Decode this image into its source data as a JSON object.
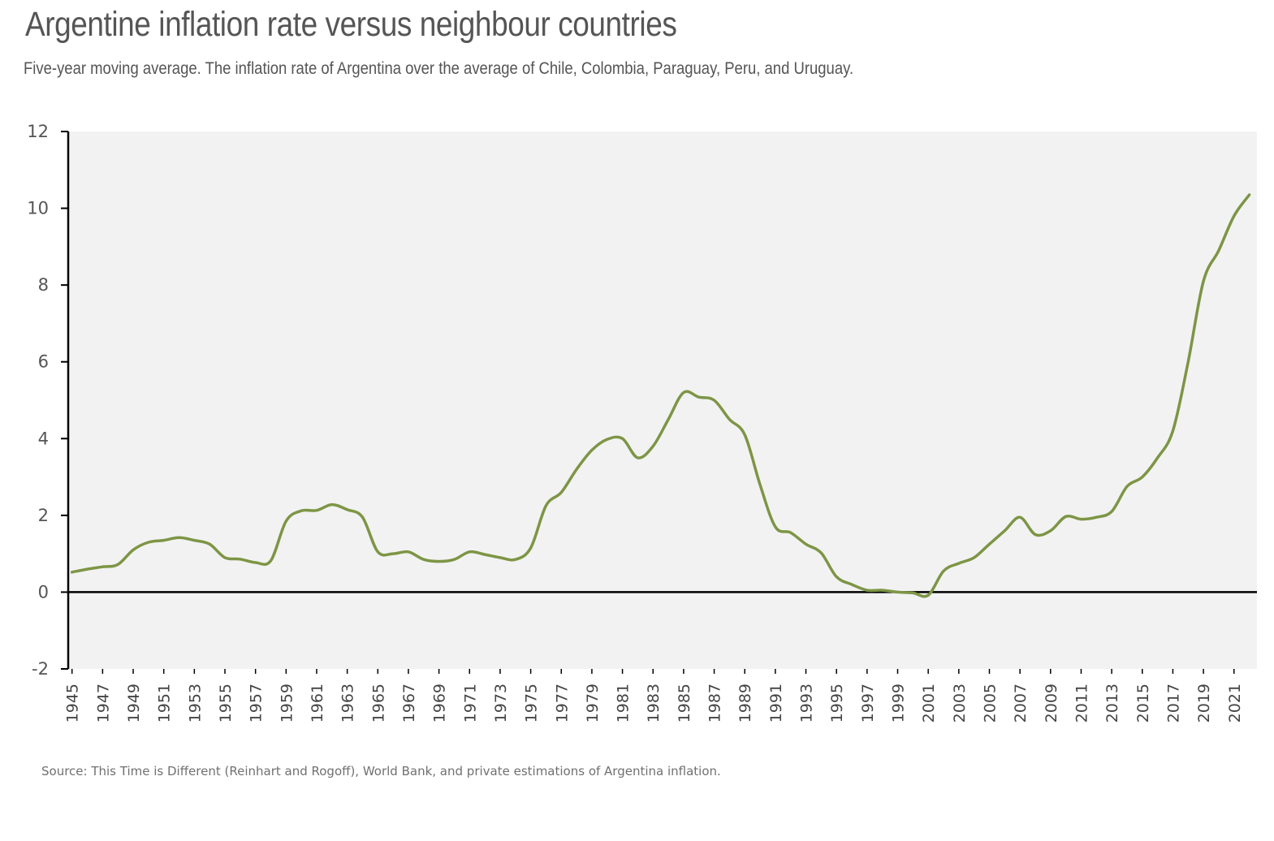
{
  "header": {
    "title": "Argentine inflation rate versus neighbour countries",
    "subtitle": "Five-year moving average. The inflation rate of Argentina over the average of Chile, Colombia, Paraguay, Peru, and Uruguay."
  },
  "footer": {
    "source": "Source: This Time is Different (Reinhart and Rogoff), World Bank, and private estimations of Argentina inflation."
  },
  "colors": {
    "line": "#7d9545",
    "plot_background": "#f2f2f2",
    "axis": "#000000"
  },
  "chart_data": {
    "type": "line",
    "title": "Argentine inflation rate versus neighbour countries",
    "subtitle": "Five-year moving average. The inflation rate of Argentina over the average of Chile, Colombia, Paraguay, Peru, and Uruguay.",
    "xlabel": "",
    "ylabel": "",
    "ylim": [
      -2,
      12
    ],
    "yticks": [
      -2,
      0,
      2,
      4,
      6,
      8,
      10,
      12
    ],
    "xticks": [
      1945,
      1947,
      1949,
      1951,
      1953,
      1955,
      1957,
      1959,
      1961,
      1963,
      1965,
      1967,
      1969,
      1971,
      1973,
      1975,
      1977,
      1979,
      1981,
      1983,
      1985,
      1987,
      1989,
      1991,
      1993,
      1995,
      1997,
      1999,
      2001,
      2003,
      2005,
      2007,
      2009,
      2011,
      2013,
      2015,
      2017,
      2019,
      2021
    ],
    "grid": false,
    "legend": "none",
    "x": [
      1945,
      1946,
      1947,
      1948,
      1949,
      1950,
      1951,
      1952,
      1953,
      1954,
      1955,
      1956,
      1957,
      1958,
      1959,
      1960,
      1961,
      1962,
      1963,
      1964,
      1965,
      1966,
      1967,
      1968,
      1969,
      1970,
      1971,
      1972,
      1973,
      1974,
      1975,
      1976,
      1977,
      1978,
      1979,
      1980,
      1981,
      1982,
      1983,
      1984,
      1985,
      1986,
      1987,
      1988,
      1989,
      1990,
      1991,
      1992,
      1993,
      1994,
      1995,
      1996,
      1997,
      1998,
      1999,
      2000,
      2001,
      2002,
      2003,
      2004,
      2005,
      2006,
      2007,
      2008,
      2009,
      2010,
      2011,
      2012,
      2013,
      2014,
      2015,
      2016,
      2017,
      2018,
      2019,
      2020,
      2021,
      2022
    ],
    "series": [
      {
        "values": [
          0.52,
          0.6,
          0.66,
          0.72,
          1.1,
          1.3,
          1.35,
          1.42,
          1.35,
          1.25,
          0.9,
          0.86,
          0.77,
          0.82,
          1.85,
          2.12,
          2.13,
          2.28,
          2.15,
          1.95,
          1.05,
          1.0,
          1.05,
          0.85,
          0.8,
          0.85,
          1.05,
          0.98,
          0.9,
          0.85,
          1.15,
          2.25,
          2.6,
          3.2,
          3.7,
          3.98,
          4.0,
          3.5,
          3.8,
          4.5,
          5.2,
          5.08,
          5.0,
          4.5,
          4.1,
          2.8,
          1.7,
          1.55,
          1.25,
          1.02,
          0.4,
          0.2,
          0.05,
          0.05,
          0.0,
          -0.02,
          -0.08,
          0.55,
          0.75,
          0.9,
          1.25,
          1.6,
          1.95,
          1.5,
          1.6,
          1.97,
          1.9,
          1.95,
          2.1,
          2.75,
          3.0,
          3.5,
          4.2,
          6.0,
          8.1,
          8.9,
          9.8,
          10.35
        ]
      }
    ]
  }
}
